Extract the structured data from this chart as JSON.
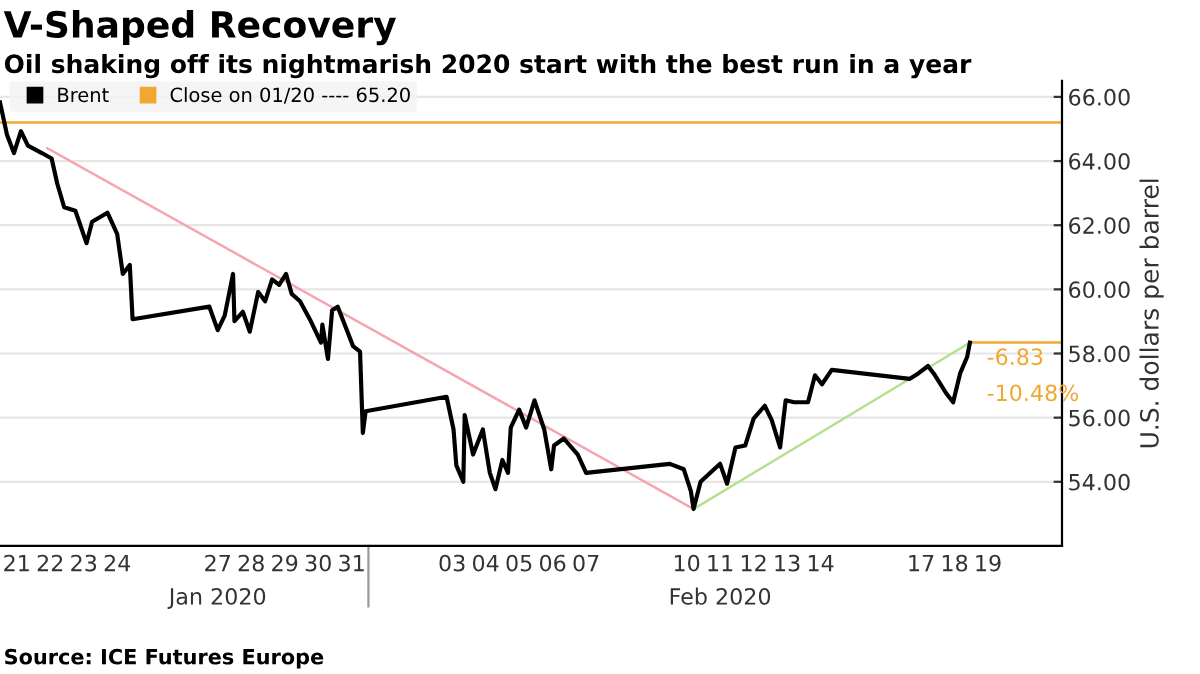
{
  "chart_data": {
    "type": "line",
    "title": "V-Shaped Recovery",
    "subtitle": "Oil shaking off its nightmarish 2020 start with the best run in a year",
    "ylabel": "U.S. dollars per barrel",
    "annotations": [
      "Source: ICE Futures Europe",
      {
        "text": "-6.83",
        "x": "2020-02-18T23:00",
        "y": 58.34
      },
      {
        "text": "-10.48%",
        "x": "2020-02-18T23:00",
        "y": 58.34
      }
    ],
    "series": [
      {
        "name": "Brent",
        "color": "#000000",
        "x": [
          "2020-01-21T00:00",
          "2020-01-21T05:00",
          "2020-01-21T10:00",
          "2020-01-21T15:00",
          "2020-01-21T20:00",
          "2020-01-22T06:00",
          "2020-01-22T13:00",
          "2020-01-22T17:00",
          "2020-01-22T22:00",
          "2020-01-23T06:00",
          "2020-01-23T14:00",
          "2020-01-23T18:00",
          "2020-01-24T05:00",
          "2020-01-24T12:00",
          "2020-01-24T16:00",
          "2020-01-24T21:00",
          "2020-01-24T23:00",
          "2020-01-27T06:00",
          "2020-01-27T12:00",
          "2020-01-27T17:00",
          "2020-01-27T23:00",
          "2020-01-28T00:00",
          "2020-01-28T06:00",
          "2020-01-28T11:00",
          "2020-01-28T17:00",
          "2020-01-28T22:00",
          "2020-01-29T03:00",
          "2020-01-29T08:00",
          "2020-01-29T13:00",
          "2020-01-29T17:00",
          "2020-01-29T23:00",
          "2020-01-30T06:00",
          "2020-01-30T14:00",
          "2020-01-30T15:00",
          "2020-01-30T19:00",
          "2020-01-30T22:00",
          "2020-01-31T02:00",
          "2020-01-31T08:00",
          "2020-01-31T13:00",
          "2020-01-31T18:00",
          "2020-01-31T20:00",
          "2020-01-31T22:00",
          "2020-02-03T08:00",
          "2020-02-03T13:00",
          "2020-02-03T15:00",
          "2020-02-03T20:00",
          "2020-02-03T21:00",
          "2020-02-04T03:00",
          "2020-02-04T10:00",
          "2020-02-04T15:00",
          "2020-02-04T19:00",
          "2020-02-05T00:00",
          "2020-02-05T04:00",
          "2020-02-05T06:00",
          "2020-02-05T12:00",
          "2020-02-05T17:00",
          "2020-02-05T23:00",
          "2020-02-06T06:00",
          "2020-02-06T11:00",
          "2020-02-06T13:00",
          "2020-02-06T20:00",
          "2020-02-07T06:00",
          "2020-02-07T12:00",
          "2020-02-10T00:00",
          "2020-02-10T10:00",
          "2020-02-10T15:00",
          "2020-02-10T17:00",
          "2020-02-10T22:00",
          "2020-02-11T05:00",
          "2020-02-11T12:00",
          "2020-02-11T17:00",
          "2020-02-11T23:00",
          "2020-02-12T06:00",
          "2020-02-12T12:00",
          "2020-02-12T20:00",
          "2020-02-13T01:00",
          "2020-02-13T07:00",
          "2020-02-13T11:00",
          "2020-02-13T17:00",
          "2020-02-14T03:00",
          "2020-02-14T08:00",
          "2020-02-14T13:00",
          "2020-02-14T20:00",
          "2020-02-17T04:00",
          "2020-02-17T10:00",
          "2020-02-17T17:00",
          "2020-02-17T22:00",
          "2020-02-18T06:00",
          "2020-02-18T11:00",
          "2020-02-18T16:00",
          "2020-02-18T21:00",
          "2020-02-18T23:00"
        ],
        "values": [
          65.83,
          64.82,
          64.25,
          64.93,
          64.48,
          64.25,
          64.08,
          63.3,
          62.56,
          62.45,
          61.44,
          62.11,
          62.39,
          61.72,
          60.48,
          60.76,
          59.07,
          59.46,
          58.73,
          59.18,
          60.48,
          59.01,
          59.3,
          58.68,
          59.92,
          59.63,
          60.31,
          60.14,
          60.48,
          59.86,
          59.63,
          59.07,
          58.34,
          58.9,
          57.83,
          59.35,
          59.46,
          58.79,
          58.23,
          58.06,
          55.52,
          56.2,
          56.65,
          55.63,
          54.51,
          54.0,
          56.08,
          54.85,
          55.63,
          54.28,
          53.77,
          54.68,
          54.28,
          55.69,
          56.25,
          55.69,
          56.54,
          55.63,
          54.39,
          55.13,
          55.35,
          54.85,
          54.28,
          54.56,
          54.39,
          53.72,
          53.15,
          54.0,
          54.28,
          54.56,
          53.94,
          55.07,
          55.13,
          55.97,
          56.37,
          55.92,
          55.07,
          56.54,
          56.48,
          56.48,
          57.32,
          57.04,
          57.49,
          57.21,
          57.38,
          57.61,
          57.32,
          56.76,
          56.48,
          57.38,
          57.89,
          58.34
        ]
      },
      {
        "color": "#f4a6b0",
        "x": [
          "2020-01-22T10:00",
          "2020-02-10T17:00"
        ],
        "values": [
          64.4,
          53.15
        ]
      },
      {
        "color": "#b5e08a",
        "x": [
          "2020-02-10T17:00",
          "2020-02-18T23:00"
        ],
        "values": [
          53.15,
          58.34
        ]
      }
    ],
    "ref_lines": [
      {
        "axis": "y",
        "value": 65.2,
        "label": "Close on 01/20 ---- 65.20",
        "color": "#f0a830"
      },
      {
        "axis": "y",
        "value": 58.34,
        "color": "#f0a830"
      }
    ],
    "xlim": [
      "2020-01-21T00:00",
      "2020-02-21T17:00"
    ],
    "xticks": [
      {
        "value": "2020-01-21T12:00",
        "label": "21"
      },
      {
        "value": "2020-01-22T12:00",
        "label": "22"
      },
      {
        "value": "2020-01-23T12:00",
        "label": "23"
      },
      {
        "value": "2020-01-24T12:00",
        "label": "24"
      },
      {
        "value": "2020-01-27T12:00",
        "label": "27"
      },
      {
        "value": "2020-01-28T12:00",
        "label": "28"
      },
      {
        "value": "2020-01-29T12:00",
        "label": "29"
      },
      {
        "value": "2020-01-30T12:00",
        "label": "30"
      },
      {
        "value": "2020-01-31T12:00",
        "label": "31"
      },
      {
        "value": "2020-02-03T12:00",
        "label": "03"
      },
      {
        "value": "2020-02-04T12:00",
        "label": "04"
      },
      {
        "value": "2020-02-05T12:00",
        "label": "05"
      },
      {
        "value": "2020-02-06T12:00",
        "label": "06"
      },
      {
        "value": "2020-02-07T12:00",
        "label": "07"
      },
      {
        "value": "2020-02-10T12:00",
        "label": "10"
      },
      {
        "value": "2020-02-11T12:00",
        "label": "11"
      },
      {
        "value": "2020-02-12T12:00",
        "label": "12"
      },
      {
        "value": "2020-02-13T12:00",
        "label": "13"
      },
      {
        "value": "2020-02-14T12:00",
        "label": "14"
      },
      {
        "value": "2020-02-17T12:00",
        "label": "17"
      },
      {
        "value": "2020-02-18T12:00",
        "label": "18"
      },
      {
        "value": "2020-02-19T12:00",
        "label": "19"
      }
    ],
    "x2lim": [
      "2020-01-21T00:00",
      "2020-02-21T17:00"
    ],
    "x2ticks": [
      {
        "value": "2020-01-27T12:00",
        "label": "Jan 2020"
      },
      {
        "value": "2020-02-11T12:00",
        "label": "Feb 2020"
      }
    ],
    "ylim": [
      52,
      66.5
    ],
    "yticks": [
      {
        "value": 54,
        "label": "54.00"
      },
      {
        "value": 56,
        "label": "56.00"
      },
      {
        "value": 58,
        "label": "58.00"
      },
      {
        "value": 60,
        "label": "60.00"
      },
      {
        "value": 62,
        "label": "62.00"
      },
      {
        "value": 64,
        "label": "64.00"
      },
      {
        "value": 66,
        "label": "66.00"
      }
    ],
    "grid": "y",
    "legend": "top left"
  }
}
